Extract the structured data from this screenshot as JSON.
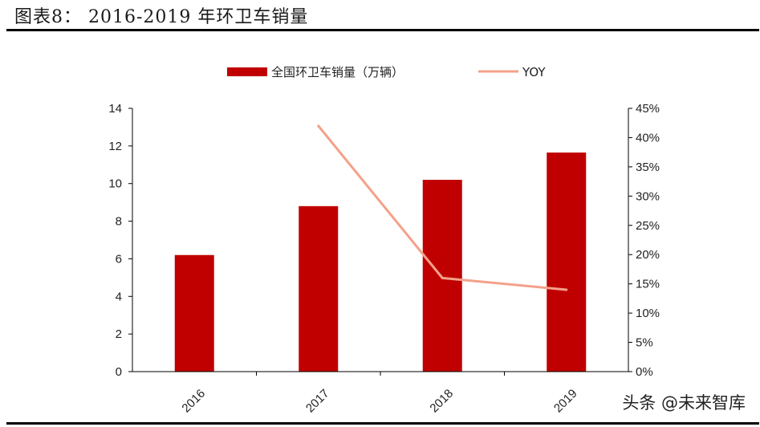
{
  "header": {
    "figure_title": "图表8：  2016-2019 年环卫车销量"
  },
  "watermark": "头条 @未来智库",
  "colors": {
    "bar": "#C00000",
    "line": "#F4A18A",
    "axis": "#000000"
  },
  "chart_data": {
    "type": "bar",
    "categories": [
      "2016",
      "2017",
      "2018",
      "2019"
    ],
    "series": [
      {
        "name": "全国环卫车销量（万辆）",
        "type": "bar",
        "axis": "left",
        "values": [
          6.2,
          8.8,
          10.2,
          11.65
        ]
      },
      {
        "name": "YOY",
        "type": "line",
        "axis": "right",
        "values": [
          null,
          0.42,
          0.16,
          0.14
        ]
      }
    ],
    "y_left": {
      "min": 0,
      "max": 14,
      "step": 2,
      "ticks": [
        "0",
        "2",
        "4",
        "6",
        "8",
        "10",
        "12",
        "14"
      ]
    },
    "y_right": {
      "min": 0,
      "max": 0.45,
      "step": 0.05,
      "ticks": [
        "0%",
        "5%",
        "10%",
        "15%",
        "20%",
        "25%",
        "30%",
        "35%",
        "40%",
        "45%"
      ]
    },
    "legend_position": "top-center",
    "grid": false
  }
}
